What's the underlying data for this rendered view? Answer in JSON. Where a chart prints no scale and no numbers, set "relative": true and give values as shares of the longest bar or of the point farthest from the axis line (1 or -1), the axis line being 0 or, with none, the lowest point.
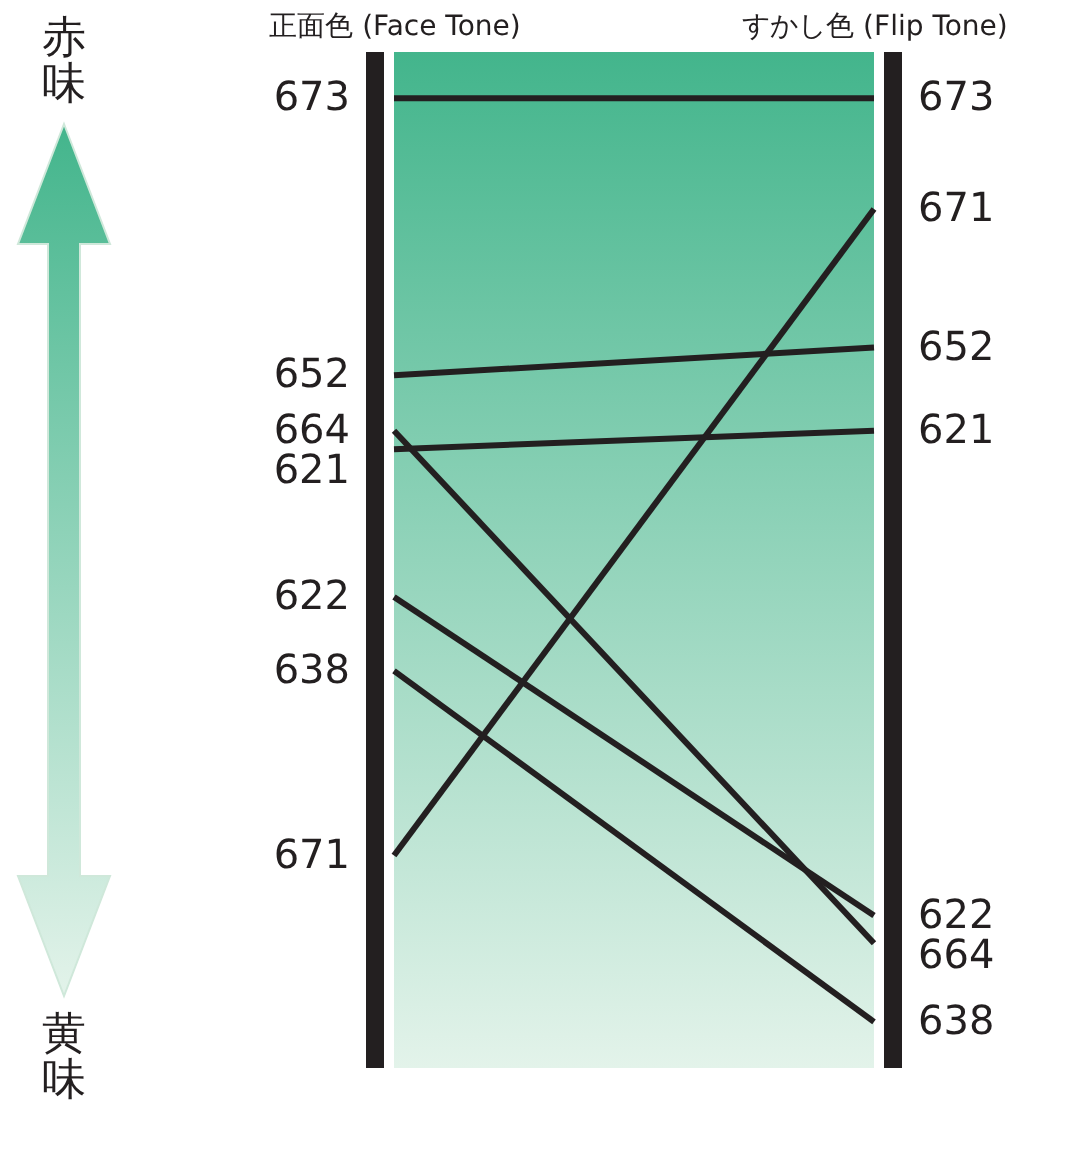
{
  "chart_data": {
    "type": "line",
    "relative": true,
    "categories": [
      "正面色 (Face Tone)",
      "すかし色 (Flip Tone)"
    ],
    "series": [
      {
        "name": "673",
        "color": "#231f20",
        "values": [
          1.0,
          1.0
        ]
      },
      {
        "name": "652",
        "color": "#231f20",
        "values": [
          0.7,
          0.73
        ]
      },
      {
        "name": "664",
        "color": "#231f20",
        "values": [
          0.64,
          0.085
        ]
      },
      {
        "name": "621",
        "color": "#231f20",
        "values": [
          0.62,
          0.64
        ]
      },
      {
        "name": "622",
        "color": "#231f20",
        "values": [
          0.46,
          0.115
        ]
      },
      {
        "name": "638",
        "color": "#231f20",
        "values": [
          0.38,
          0.0
        ]
      },
      {
        "name": "671",
        "color": "#231f20",
        "values": [
          0.18,
          0.88
        ]
      }
    ],
    "annotations": [
      "赤味",
      "黄味"
    ]
  }
}
